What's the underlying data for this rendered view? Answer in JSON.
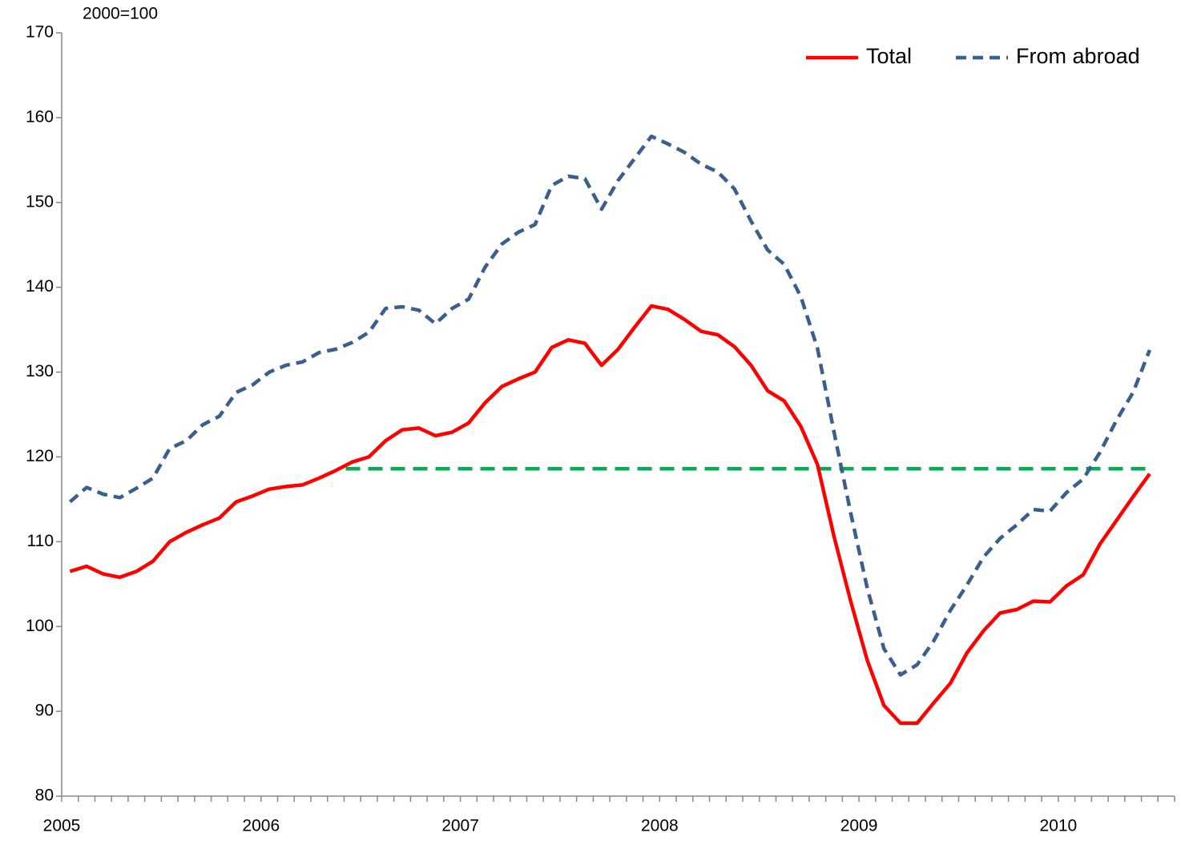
{
  "chart_data": {
    "type": "line",
    "unit_label": "2000=100",
    "categories": [
      "2005",
      null,
      null,
      null,
      null,
      null,
      null,
      null,
      null,
      null,
      null,
      null,
      "2006",
      null,
      null,
      null,
      null,
      null,
      null,
      null,
      null,
      null,
      null,
      null,
      "2007",
      null,
      null,
      null,
      null,
      null,
      null,
      null,
      null,
      null,
      null,
      null,
      "2008",
      null,
      null,
      null,
      null,
      null,
      null,
      null,
      null,
      null,
      null,
      null,
      "2009",
      null,
      null,
      null,
      null,
      null,
      null,
      null,
      null,
      null,
      null,
      null,
      "2010",
      null,
      null,
      null,
      null,
      null,
      null
    ],
    "series": [
      {
        "name": "Total",
        "color": "#ff0000",
        "dash": false,
        "values": [
          106.5,
          107.1,
          106.2,
          105.8,
          106.5,
          107.7,
          110.0,
          111.1,
          112.0,
          112.8,
          114.7,
          115.4,
          116.2,
          116.5,
          116.7,
          117.5,
          118.4,
          119.4,
          120.0,
          121.9,
          123.2,
          123.4,
          122.5,
          122.9,
          124.0,
          126.4,
          128.3,
          129.2,
          130.0,
          132.9,
          133.8,
          133.4,
          130.8,
          132.7,
          135.3,
          137.8,
          137.4,
          136.2,
          134.8,
          134.4,
          133.0,
          130.8,
          127.8,
          126.6,
          123.6,
          119.1,
          110.6,
          103.0,
          96.0,
          90.7,
          88.6,
          88.6,
          91.0,
          93.3,
          96.9,
          99.5,
          101.6,
          102.0,
          103.0,
          102.9,
          104.8,
          106.1,
          109.7,
          112.5,
          115.3,
          118.0,
          null
        ]
      },
      {
        "name": "From abroad",
        "color": "#3a5f8f",
        "dash": true,
        "values": [
          114.7,
          116.4,
          115.6,
          115.2,
          116.3,
          117.5,
          121.0,
          121.9,
          123.8,
          124.8,
          127.6,
          128.5,
          130.0,
          130.8,
          131.2,
          132.3,
          132.7,
          133.5,
          134.7,
          137.5,
          137.7,
          137.3,
          135.7,
          137.5,
          138.6,
          142.4,
          145.1,
          146.5,
          147.4,
          152.0,
          153.1,
          152.8,
          149.2,
          152.6,
          155.2,
          157.8,
          156.9,
          155.9,
          154.5,
          153.6,
          151.6,
          147.8,
          144.4,
          142.7,
          138.9,
          132.8,
          122.9,
          113.4,
          104.5,
          97.4,
          94.3,
          95.5,
          98.3,
          101.9,
          104.9,
          108.2,
          110.4,
          112.0,
          113.8,
          113.6,
          115.8,
          117.4,
          120.5,
          124.3,
          127.6,
          132.6,
          null
        ]
      }
    ],
    "reference_line": {
      "value": 118.6,
      "from_index": 16.6,
      "to_index": 65,
      "color": "#00b050"
    },
    "ylim": [
      80,
      170
    ],
    "yticks": [
      80,
      90,
      100,
      110,
      120,
      130,
      140,
      150,
      160,
      170
    ],
    "grid": false,
    "legend": "upper right"
  }
}
